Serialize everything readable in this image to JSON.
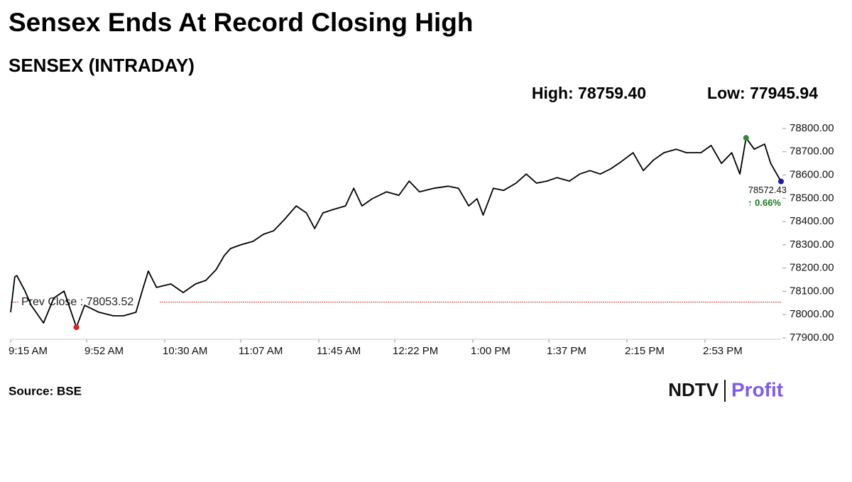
{
  "chart_data": {
    "type": "line",
    "title": "Sensex Ends At Record Closing High",
    "subtitle": "SENSEX (INTRADAY)",
    "high_label": "High: 78759.40",
    "low_label": "Low: 77945.94",
    "change_label": "↑ 0.66%",
    "change_color": "#1a7a1a",
    "reference_line": {
      "value": 78053.52,
      "label": "Prev Close : 78053.52",
      "color": "#c0392b"
    },
    "source": "Source: BSE",
    "logo": {
      "left": "NDTV",
      "right": "Profit"
    },
    "high_marker_color": "#2e8b2e",
    "low_marker_color": "#e0201b",
    "last_marker_color": "#1a1aa8",
    "xlim": [
      555,
      930
    ],
    "xticks": [
      {
        "value": 555,
        "label": "9:15 AM"
      },
      {
        "value": 592,
        "label": "9:52 AM"
      },
      {
        "value": 630,
        "label": "10:30 AM"
      },
      {
        "value": 667,
        "label": "11:07 AM"
      },
      {
        "value": 705,
        "label": "11:45 AM"
      },
      {
        "value": 742,
        "label": "12:22 PM"
      },
      {
        "value": 780,
        "label": "1:00 PM"
      },
      {
        "value": 817,
        "label": "1:37 PM"
      },
      {
        "value": 855,
        "label": "2:15 PM"
      },
      {
        "value": 893,
        "label": "2:53 PM"
      }
    ],
    "ylim": [
      77900,
      78800
    ],
    "yticks": [
      {
        "value": 77900,
        "label": "77900.00"
      },
      {
        "value": 78000,
        "label": "78000.00"
      },
      {
        "value": 78100,
        "label": "78100.00"
      },
      {
        "value": 78200,
        "label": "78200.00"
      },
      {
        "value": 78300,
        "label": "78300.00"
      },
      {
        "value": 78400,
        "label": "78400.00"
      },
      {
        "value": 78500,
        "label": "78500.00"
      },
      {
        "value": 78600,
        "label": "78600.00"
      },
      {
        "value": 78700,
        "label": "78700.00"
      },
      {
        "value": 78800,
        "label": "78800.00"
      }
    ],
    "series": [
      {
        "name": "SENSEX",
        "color": "#000000",
        "x": [
          555,
          557,
          558,
          562,
          565,
          571,
          576,
          581,
          587,
          591,
          598,
          605,
          610,
          616,
          619,
          622,
          626,
          633,
          639,
          645,
          650,
          655,
          659,
          662,
          667,
          673,
          678,
          683,
          688,
          694,
          699,
          703,
          707,
          712,
          718,
          722,
          726,
          731,
          738,
          744,
          749,
          754,
          761,
          768,
          773,
          778,
          782,
          785,
          790,
          795,
          801,
          806,
          811,
          816,
          821,
          827,
          832,
          837,
          842,
          847,
          852,
          858,
          863,
          868,
          873,
          879,
          884,
          891,
          896,
          901,
          906,
          910,
          913,
          917,
          922,
          925,
          930
        ],
        "values": [
          78010,
          78162,
          78168,
          78101,
          78040,
          77964,
          78071,
          78101,
          77945.94,
          78040,
          78010,
          77995,
          77995,
          78010,
          78101,
          78187,
          78117,
          78132,
          78095,
          78132,
          78147,
          78193,
          78254,
          78284,
          78300,
          78315,
          78345,
          78360,
          78406,
          78467,
          78437,
          78370,
          78437,
          78452,
          78467,
          78543,
          78467,
          78498,
          78528,
          78513,
          78574,
          78528,
          78543,
          78552,
          78543,
          78467,
          78498,
          78428,
          78543,
          78534,
          78565,
          78604,
          78565,
          78574,
          78589,
          78574,
          78604,
          78619,
          78604,
          78626,
          78656,
          78696,
          78619,
          78665,
          78696,
          78711,
          78696,
          78696,
          78727,
          78650,
          78696,
          78604,
          78759.4,
          78711,
          78733,
          78650,
          78572.43
        ]
      }
    ]
  }
}
